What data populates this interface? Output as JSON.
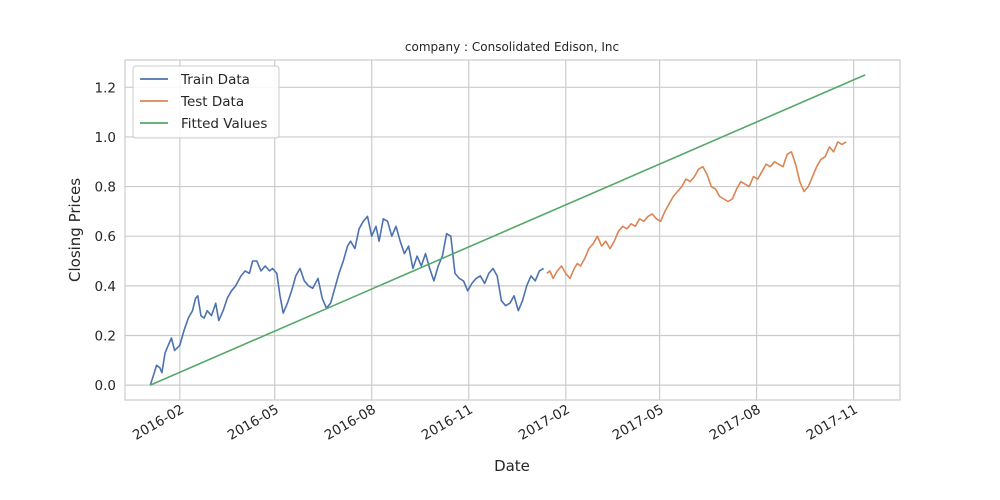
{
  "chart_data": {
    "type": "line",
    "title": "company : Consolidated Edison, Inc",
    "xlabel": "Date",
    "ylabel": "Closing Prices",
    "x_ticks": [
      "2016-02",
      "2016-05",
      "2016-08",
      "2016-11",
      "2017-02",
      "2017-05",
      "2017-08",
      "2017-11"
    ],
    "y_ticks": [
      "0.0",
      "0.2",
      "0.4",
      "0.6",
      "0.8",
      "1.0",
      "1.2"
    ],
    "xlim": [
      "2015-12-11",
      "2017-12-15"
    ],
    "ylim": [
      -0.06,
      1.31
    ],
    "grid": true,
    "legend": "top-left",
    "series": [
      {
        "name": "Train Data",
        "color": "#4c72b0",
        "points": [
          [
            "2016-01-04",
            0.0
          ],
          [
            "2016-01-07",
            0.04
          ],
          [
            "2016-01-10",
            0.08
          ],
          [
            "2016-01-13",
            0.07
          ],
          [
            "2016-01-15",
            0.05
          ],
          [
            "2016-01-18",
            0.13
          ],
          [
            "2016-01-21",
            0.16
          ],
          [
            "2016-01-24",
            0.19
          ],
          [
            "2016-01-27",
            0.14
          ],
          [
            "2016-02-01",
            0.16
          ],
          [
            "2016-02-05",
            0.22
          ],
          [
            "2016-02-09",
            0.27
          ],
          [
            "2016-02-13",
            0.3
          ],
          [
            "2016-02-16",
            0.35
          ],
          [
            "2016-02-18",
            0.36
          ],
          [
            "2016-02-21",
            0.28
          ],
          [
            "2016-02-24",
            0.27
          ],
          [
            "2016-02-27",
            0.3
          ],
          [
            "2016-03-02",
            0.28
          ],
          [
            "2016-03-06",
            0.33
          ],
          [
            "2016-03-09",
            0.26
          ],
          [
            "2016-03-13",
            0.3
          ],
          [
            "2016-03-17",
            0.35
          ],
          [
            "2016-03-21",
            0.38
          ],
          [
            "2016-03-25",
            0.4
          ],
          [
            "2016-03-30",
            0.44
          ],
          [
            "2016-04-03",
            0.46
          ],
          [
            "2016-04-07",
            0.45
          ],
          [
            "2016-04-10",
            0.5
          ],
          [
            "2016-04-14",
            0.5
          ],
          [
            "2016-04-18",
            0.46
          ],
          [
            "2016-04-22",
            0.48
          ],
          [
            "2016-04-26",
            0.46
          ],
          [
            "2016-04-29",
            0.47
          ],
          [
            "2016-05-03",
            0.45
          ],
          [
            "2016-05-06",
            0.36
          ],
          [
            "2016-05-09",
            0.29
          ],
          [
            "2016-05-13",
            0.33
          ],
          [
            "2016-05-17",
            0.38
          ],
          [
            "2016-05-21",
            0.44
          ],
          [
            "2016-05-25",
            0.47
          ],
          [
            "2016-05-29",
            0.42
          ],
          [
            "2016-06-02",
            0.4
          ],
          [
            "2016-06-06",
            0.39
          ],
          [
            "2016-06-11",
            0.43
          ],
          [
            "2016-06-15",
            0.35
          ],
          [
            "2016-06-19",
            0.31
          ],
          [
            "2016-06-23",
            0.33
          ],
          [
            "2016-06-27",
            0.39
          ],
          [
            "2016-07-01",
            0.45
          ],
          [
            "2016-07-05",
            0.5
          ],
          [
            "2016-07-09",
            0.56
          ],
          [
            "2016-07-12",
            0.58
          ],
          [
            "2016-07-16",
            0.55
          ],
          [
            "2016-07-20",
            0.63
          ],
          [
            "2016-07-24",
            0.66
          ],
          [
            "2016-07-28",
            0.68
          ],
          [
            "2016-08-01",
            0.6
          ],
          [
            "2016-08-05",
            0.64
          ],
          [
            "2016-08-08",
            0.58
          ],
          [
            "2016-08-12",
            0.67
          ],
          [
            "2016-08-16",
            0.66
          ],
          [
            "2016-08-20",
            0.6
          ],
          [
            "2016-08-24",
            0.64
          ],
          [
            "2016-08-28",
            0.58
          ],
          [
            "2016-09-01",
            0.53
          ],
          [
            "2016-09-05",
            0.56
          ],
          [
            "2016-09-09",
            0.47
          ],
          [
            "2016-09-13",
            0.52
          ],
          [
            "2016-09-17",
            0.48
          ],
          [
            "2016-09-21",
            0.53
          ],
          [
            "2016-09-25",
            0.47
          ],
          [
            "2016-09-29",
            0.42
          ],
          [
            "2016-10-03",
            0.48
          ],
          [
            "2016-10-07",
            0.52
          ],
          [
            "2016-10-11",
            0.61
          ],
          [
            "2016-10-15",
            0.6
          ],
          [
            "2016-10-19",
            0.45
          ],
          [
            "2016-10-23",
            0.43
          ],
          [
            "2016-10-27",
            0.42
          ],
          [
            "2016-10-31",
            0.38
          ],
          [
            "2016-11-04",
            0.41
          ],
          [
            "2016-11-08",
            0.43
          ],
          [
            "2016-11-12",
            0.44
          ],
          [
            "2016-11-16",
            0.41
          ],
          [
            "2016-11-20",
            0.45
          ],
          [
            "2016-11-24",
            0.47
          ],
          [
            "2016-11-28",
            0.44
          ],
          [
            "2016-12-02",
            0.34
          ],
          [
            "2016-12-06",
            0.32
          ],
          [
            "2016-12-10",
            0.33
          ],
          [
            "2016-12-14",
            0.36
          ],
          [
            "2016-12-18",
            0.3
          ],
          [
            "2016-12-22",
            0.34
          ],
          [
            "2016-12-26",
            0.4
          ],
          [
            "2016-12-30",
            0.44
          ],
          [
            "2017-01-03",
            0.42
          ],
          [
            "2017-01-07",
            0.46
          ],
          [
            "2017-01-11",
            0.47
          ]
        ]
      },
      {
        "name": "Test Data",
        "color": "#dd8452",
        "points": [
          [
            "2017-01-14",
            0.45
          ],
          [
            "2017-01-17",
            0.46
          ],
          [
            "2017-01-20",
            0.43
          ],
          [
            "2017-01-24",
            0.46
          ],
          [
            "2017-01-28",
            0.48
          ],
          [
            "2017-02-01",
            0.45
          ],
          [
            "2017-02-05",
            0.43
          ],
          [
            "2017-02-09",
            0.47
          ],
          [
            "2017-02-12",
            0.49
          ],
          [
            "2017-02-15",
            0.48
          ],
          [
            "2017-02-19",
            0.51
          ],
          [
            "2017-02-23",
            0.55
          ],
          [
            "2017-02-27",
            0.57
          ],
          [
            "2017-03-03",
            0.6
          ],
          [
            "2017-03-07",
            0.56
          ],
          [
            "2017-03-11",
            0.58
          ],
          [
            "2017-03-15",
            0.55
          ],
          [
            "2017-03-19",
            0.58
          ],
          [
            "2017-03-23",
            0.62
          ],
          [
            "2017-03-27",
            0.64
          ],
          [
            "2017-03-31",
            0.63
          ],
          [
            "2017-04-04",
            0.65
          ],
          [
            "2017-04-08",
            0.64
          ],
          [
            "2017-04-12",
            0.67
          ],
          [
            "2017-04-16",
            0.66
          ],
          [
            "2017-04-20",
            0.68
          ],
          [
            "2017-04-24",
            0.69
          ],
          [
            "2017-04-28",
            0.67
          ],
          [
            "2017-05-02",
            0.66
          ],
          [
            "2017-05-06",
            0.7
          ],
          [
            "2017-05-10",
            0.73
          ],
          [
            "2017-05-14",
            0.76
          ],
          [
            "2017-05-18",
            0.78
          ],
          [
            "2017-05-22",
            0.8
          ],
          [
            "2017-05-26",
            0.83
          ],
          [
            "2017-05-30",
            0.82
          ],
          [
            "2017-06-03",
            0.84
          ],
          [
            "2017-06-07",
            0.87
          ],
          [
            "2017-06-11",
            0.88
          ],
          [
            "2017-06-15",
            0.85
          ],
          [
            "2017-06-19",
            0.8
          ],
          [
            "2017-06-23",
            0.79
          ],
          [
            "2017-06-27",
            0.76
          ],
          [
            "2017-07-01",
            0.75
          ],
          [
            "2017-07-05",
            0.74
          ],
          [
            "2017-07-09",
            0.75
          ],
          [
            "2017-07-13",
            0.79
          ],
          [
            "2017-07-17",
            0.82
          ],
          [
            "2017-07-21",
            0.81
          ],
          [
            "2017-07-25",
            0.8
          ],
          [
            "2017-07-29",
            0.84
          ],
          [
            "2017-08-02",
            0.83
          ],
          [
            "2017-08-06",
            0.86
          ],
          [
            "2017-08-10",
            0.89
          ],
          [
            "2017-08-14",
            0.88
          ],
          [
            "2017-08-18",
            0.9
          ],
          [
            "2017-08-22",
            0.89
          ],
          [
            "2017-08-26",
            0.88
          ],
          [
            "2017-08-30",
            0.93
          ],
          [
            "2017-09-03",
            0.94
          ],
          [
            "2017-09-07",
            0.89
          ],
          [
            "2017-09-11",
            0.82
          ],
          [
            "2017-09-15",
            0.78
          ],
          [
            "2017-09-19",
            0.8
          ],
          [
            "2017-09-23",
            0.84
          ],
          [
            "2017-09-27",
            0.88
          ],
          [
            "2017-10-01",
            0.91
          ],
          [
            "2017-10-05",
            0.92
          ],
          [
            "2017-10-09",
            0.96
          ],
          [
            "2017-10-13",
            0.94
          ],
          [
            "2017-10-17",
            0.98
          ],
          [
            "2017-10-21",
            0.97
          ],
          [
            "2017-10-25",
            0.98
          ]
        ]
      },
      {
        "name": "Fitted Values",
        "color": "#55a868",
        "points": [
          [
            "2016-01-04",
            0.0
          ],
          [
            "2017-11-12",
            1.25
          ]
        ]
      }
    ]
  }
}
